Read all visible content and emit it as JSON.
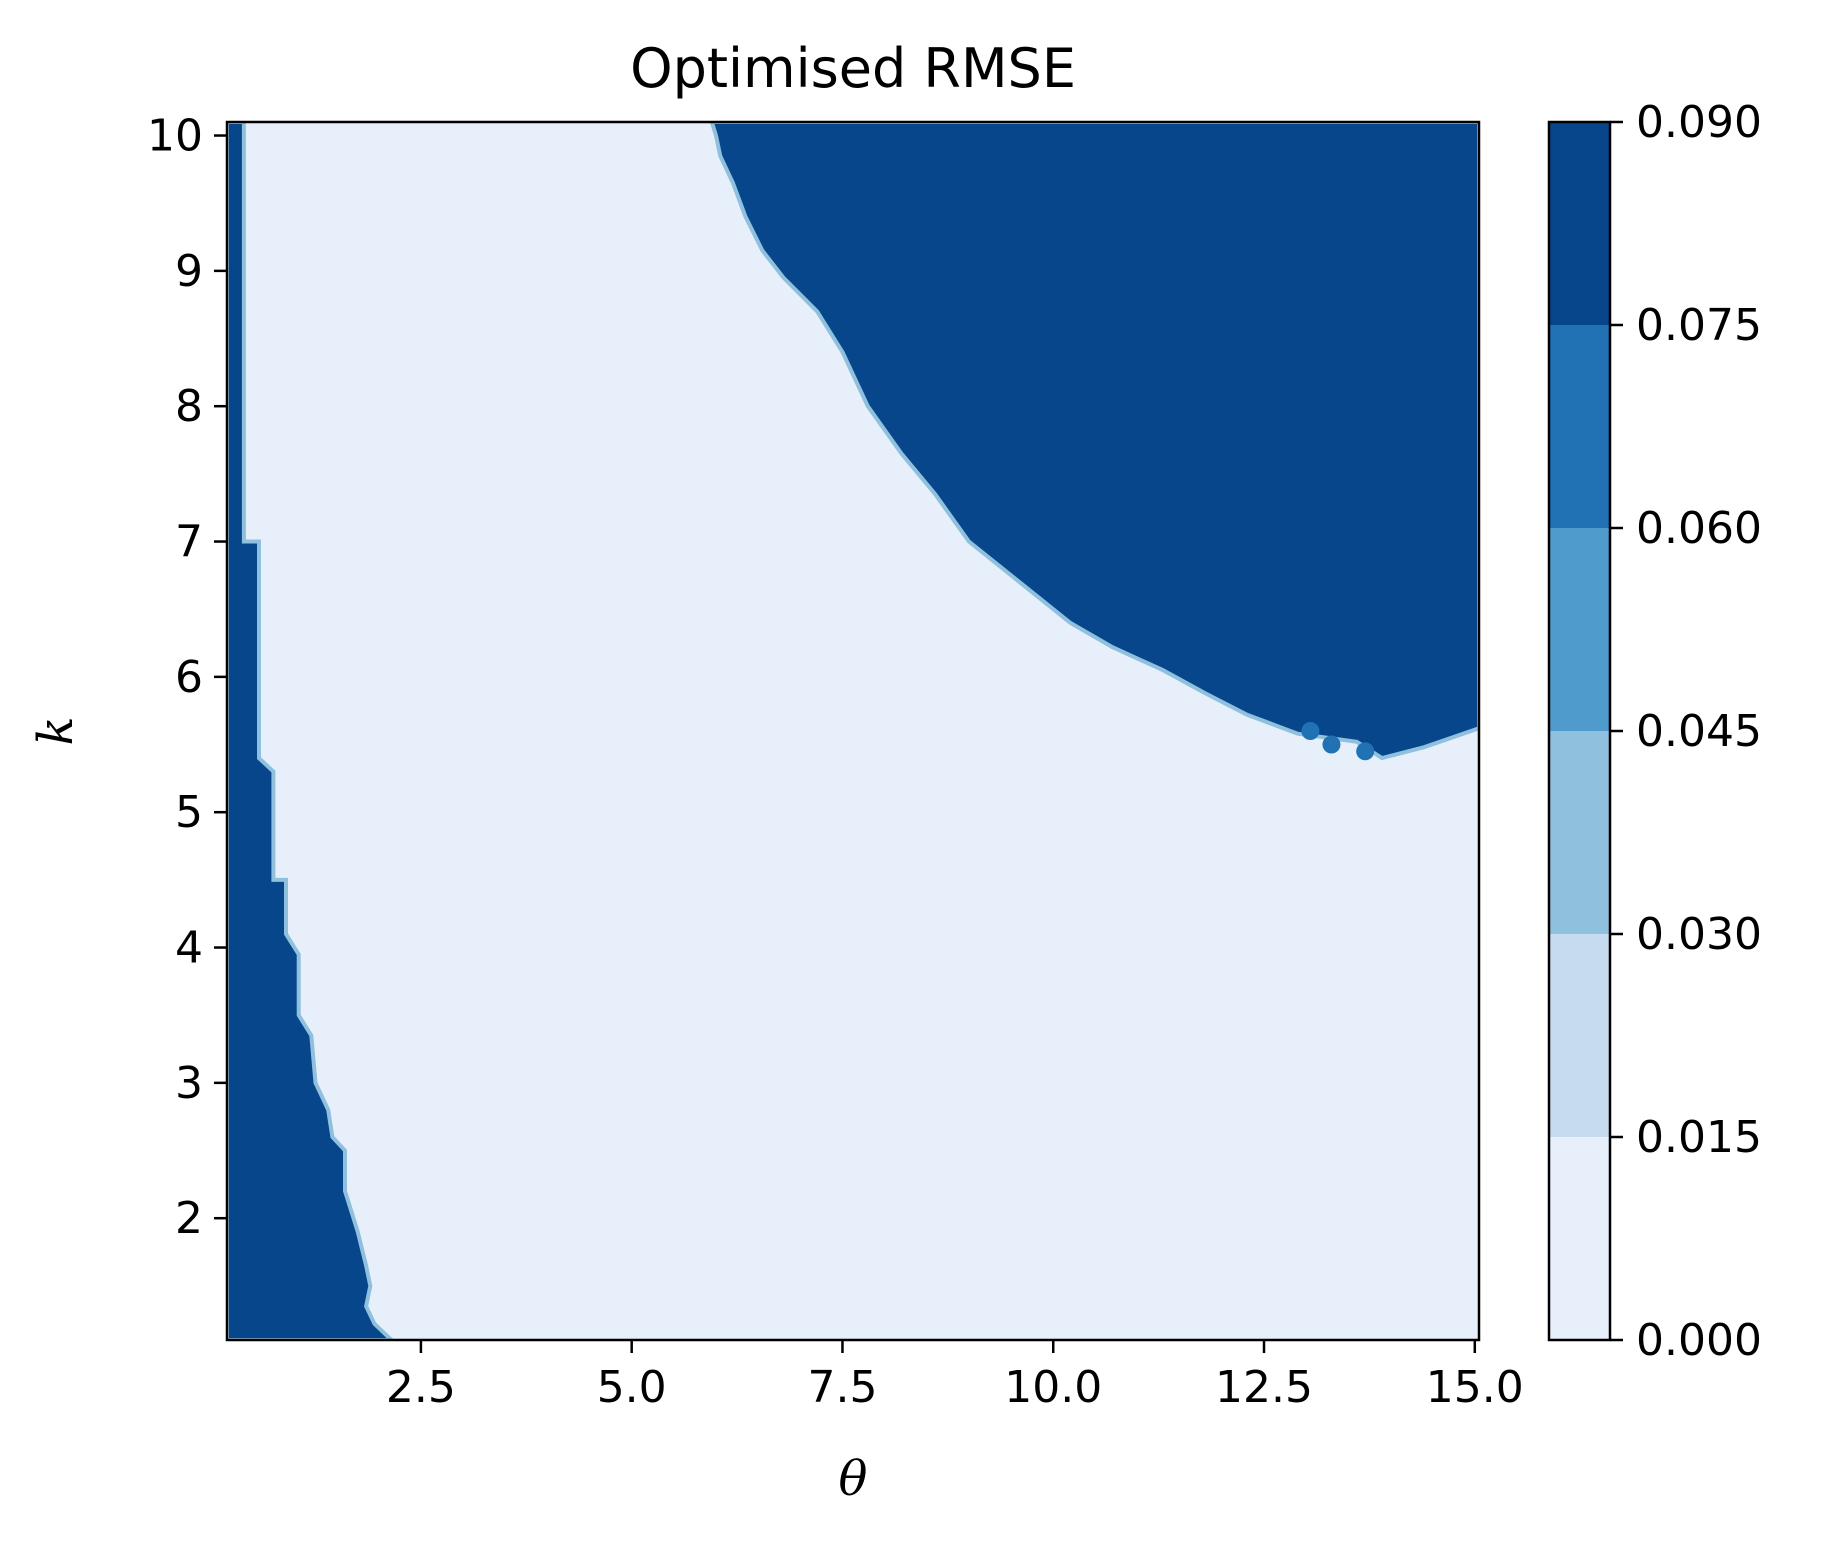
{
  "chart_data": {
    "type": "heatmap",
    "title": "Optimised RMSE",
    "xlabel": "θ",
    "ylabel": "k",
    "xlim": [
      0.2,
      15.05
    ],
    "ylim": [
      1.1,
      10.1
    ],
    "x_ticks": [
      "2.5",
      "5.0",
      "7.5",
      "10.0",
      "12.5",
      "15.0"
    ],
    "x_tick_values": [
      2.5,
      5.0,
      7.5,
      10.0,
      12.5,
      15.0
    ],
    "y_ticks": [
      "2",
      "3",
      "4",
      "5",
      "6",
      "7",
      "8",
      "9",
      "10"
    ],
    "y_tick_values": [
      2,
      3,
      4,
      5,
      6,
      7,
      8,
      9,
      10
    ],
    "grid": false,
    "colormap": "Blues",
    "colorbar": {
      "position": "right",
      "levels": [
        0.0,
        0.015,
        0.03,
        0.045,
        0.06,
        0.075,
        0.09
      ],
      "tick_labels": [
        "0.000",
        "0.015",
        "0.030",
        "0.045",
        "0.060",
        "0.075",
        "0.090"
      ],
      "colors": [
        "#e7f0fa",
        "#c6dbef",
        "#8fc1de",
        "#4f9bcb",
        "#2171b5",
        "#08468b"
      ]
    },
    "regions": [
      {
        "rmse_band": [
          0.075,
          0.09
        ],
        "description_free": true,
        "boundary_theta_k": [
          [
            0.2,
            10.1
          ],
          [
            0.4,
            10.1
          ],
          [
            0.4,
            7.0
          ],
          [
            0.58,
            7.0
          ],
          [
            0.58,
            5.4
          ],
          [
            0.75,
            5.3
          ],
          [
            0.75,
            4.5
          ],
          [
            0.9,
            4.5
          ],
          [
            0.9,
            4.1
          ],
          [
            1.05,
            3.95
          ],
          [
            1.05,
            3.5
          ],
          [
            1.2,
            3.35
          ],
          [
            1.25,
            3.0
          ],
          [
            1.4,
            2.8
          ],
          [
            1.45,
            2.6
          ],
          [
            1.6,
            2.5
          ],
          [
            1.6,
            2.2
          ],
          [
            1.75,
            1.9
          ],
          [
            1.85,
            1.65
          ],
          [
            1.9,
            1.5
          ],
          [
            1.85,
            1.35
          ],
          [
            1.95,
            1.22
          ],
          [
            2.15,
            1.1
          ],
          [
            0.2,
            1.1
          ]
        ]
      },
      {
        "rmse_band": [
          0.075,
          0.09
        ],
        "boundary_theta_k": [
          [
            5.95,
            10.1
          ],
          [
            15.05,
            10.1
          ],
          [
            15.05,
            5.62
          ],
          [
            14.4,
            5.48
          ],
          [
            13.9,
            5.4
          ],
          [
            13.6,
            5.52
          ],
          [
            12.9,
            5.58
          ],
          [
            12.6,
            5.65
          ],
          [
            12.3,
            5.72
          ],
          [
            11.8,
            5.88
          ],
          [
            11.3,
            6.05
          ],
          [
            10.7,
            6.22
          ],
          [
            10.2,
            6.4
          ],
          [
            9.6,
            6.7
          ],
          [
            9.0,
            7.0
          ],
          [
            8.6,
            7.35
          ],
          [
            8.2,
            7.65
          ],
          [
            7.8,
            8.0
          ],
          [
            7.5,
            8.4
          ],
          [
            7.2,
            8.7
          ],
          [
            6.8,
            8.95
          ],
          [
            6.55,
            9.15
          ],
          [
            6.35,
            9.4
          ],
          [
            6.2,
            9.65
          ],
          [
            6.05,
            9.85
          ],
          [
            6.0,
            10.0
          ]
        ]
      }
    ],
    "background_band": [
      0.0,
      0.015
    ],
    "edge_band": [
      0.03,
      0.045
    ],
    "mid_patches_band": [
      0.06,
      0.075
    ]
  }
}
